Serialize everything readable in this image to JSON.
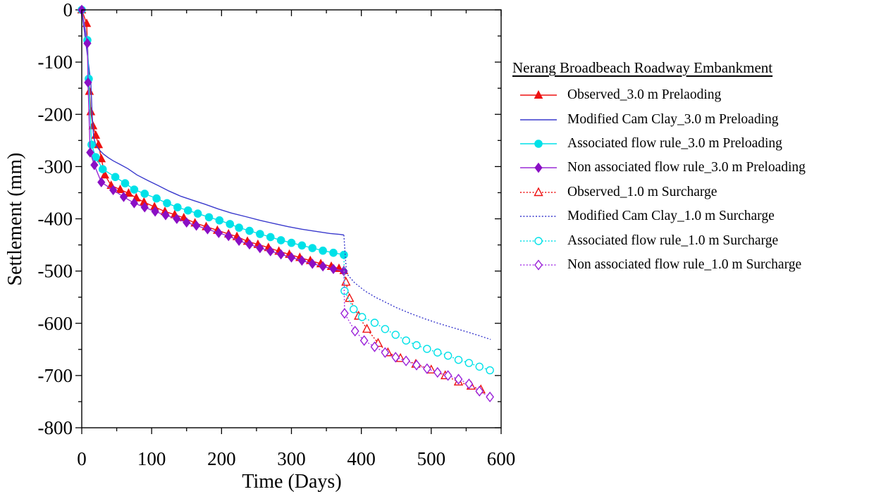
{
  "chart_data": {
    "type": "line",
    "legend_title": "Nerang Broadbeach Roadway Embankment",
    "xlabel": "Time (Days)",
    "ylabel": "Settlement (mm)",
    "xlim": [
      0,
      600
    ],
    "ylim": [
      -800,
      0
    ],
    "x_major_ticks": [
      0,
      100,
      200,
      300,
      400,
      500,
      600
    ],
    "x_minor_step": 50,
    "y_major_ticks": [
      0,
      -100,
      -200,
      -300,
      -400,
      -500,
      -600,
      -700,
      -800
    ],
    "y_minor_step": 50,
    "grid": false,
    "legend_position": "right-outside",
    "axis_color": "#000000",
    "series": [
      {
        "id": "observed-3m-preloading",
        "label": "Observed_3.0 m Prelaoding",
        "color": "#ee1111",
        "marker": "triangle",
        "marker_style": "filled",
        "line": "solid",
        "marker_from": 0,
        "points": [
          [
            0,
            0
          ],
          [
            7,
            -26
          ],
          [
            11,
            -156
          ],
          [
            13,
            -195
          ],
          [
            16,
            -222
          ],
          [
            20,
            -240
          ],
          [
            24,
            -258
          ],
          [
            28,
            -285
          ],
          [
            33,
            -316
          ],
          [
            42,
            -336
          ],
          [
            55,
            -344
          ],
          [
            67,
            -351
          ],
          [
            78,
            -360
          ],
          [
            89,
            -368
          ],
          [
            104,
            -377
          ],
          [
            119,
            -386
          ],
          [
            133,
            -392
          ],
          [
            146,
            -398
          ],
          [
            162,
            -408
          ],
          [
            178,
            -415
          ],
          [
            194,
            -422
          ],
          [
            210,
            -429
          ],
          [
            222,
            -434
          ],
          [
            237,
            -443
          ],
          [
            252,
            -449
          ],
          [
            267,
            -455
          ],
          [
            282,
            -462
          ],
          [
            297,
            -468
          ],
          [
            312,
            -474
          ],
          [
            327,
            -480
          ],
          [
            342,
            -486
          ],
          [
            357,
            -491
          ],
          [
            368,
            -495
          ],
          [
            375,
            -499
          ]
        ]
      },
      {
        "id": "mcc-3m-preloading",
        "label": "Modified Cam Clay_3.0 m Preloading",
        "color": "#3a3acd",
        "marker": "none",
        "marker_style": "none",
        "line": "solid",
        "marker_from": 0,
        "points": [
          [
            0,
            0
          ],
          [
            13,
            -140
          ],
          [
            15,
            -205
          ],
          [
            17,
            -244
          ],
          [
            20,
            -258
          ],
          [
            25,
            -268
          ],
          [
            31,
            -276
          ],
          [
            38,
            -283
          ],
          [
            45,
            -289
          ],
          [
            55,
            -296
          ],
          [
            66,
            -304
          ],
          [
            79,
            -316
          ],
          [
            95,
            -327
          ],
          [
            109,
            -336
          ],
          [
            125,
            -347
          ],
          [
            142,
            -357
          ],
          [
            160,
            -365
          ],
          [
            176,
            -372
          ],
          [
            195,
            -381
          ],
          [
            214,
            -389
          ],
          [
            235,
            -396
          ],
          [
            255,
            -403
          ],
          [
            275,
            -409
          ],
          [
            295,
            -415
          ],
          [
            315,
            -420
          ],
          [
            335,
            -424
          ],
          [
            355,
            -428
          ],
          [
            370,
            -430
          ],
          [
            375,
            -431
          ]
        ]
      },
      {
        "id": "associated-3m-preloading",
        "label": "Associated flow rule_3.0 m Preloading",
        "color": "#00e1e8",
        "marker": "circle",
        "marker_style": "filled",
        "line": "solid",
        "marker_from": 0,
        "points": [
          [
            0,
            0
          ],
          [
            8,
            -58
          ],
          [
            10,
            -132
          ],
          [
            14,
            -258
          ],
          [
            20,
            -282
          ],
          [
            30,
            -305
          ],
          [
            48,
            -320
          ],
          [
            62,
            -332
          ],
          [
            75,
            -344
          ],
          [
            90,
            -352
          ],
          [
            107,
            -361
          ],
          [
            122,
            -370
          ],
          [
            137,
            -378
          ],
          [
            152,
            -384
          ],
          [
            166,
            -390
          ],
          [
            182,
            -397
          ],
          [
            197,
            -403
          ],
          [
            212,
            -410
          ],
          [
            225,
            -417
          ],
          [
            240,
            -423
          ],
          [
            255,
            -429
          ],
          [
            270,
            -435
          ],
          [
            285,
            -441
          ],
          [
            300,
            -446
          ],
          [
            315,
            -451
          ],
          [
            330,
            -456
          ],
          [
            345,
            -461
          ],
          [
            360,
            -465
          ],
          [
            375,
            -469
          ]
        ]
      },
      {
        "id": "nonassociated-3m-preloading",
        "label": "Non associated flow rule_3.0 m Preloading",
        "color": "#9a2bd6",
        "marker_color": "#8a0fc4",
        "marker": "diamond",
        "marker_style": "filled",
        "line": "solid",
        "marker_from": 0,
        "points": [
          [
            0,
            0
          ],
          [
            8,
            -64
          ],
          [
            9,
            -139
          ],
          [
            12,
            -273
          ],
          [
            18,
            -297
          ],
          [
            28,
            -330
          ],
          [
            45,
            -345
          ],
          [
            60,
            -358
          ],
          [
            75,
            -370
          ],
          [
            90,
            -378
          ],
          [
            105,
            -386
          ],
          [
            120,
            -393
          ],
          [
            136,
            -400
          ],
          [
            150,
            -407
          ],
          [
            164,
            -413
          ],
          [
            180,
            -420
          ],
          [
            196,
            -427
          ],
          [
            210,
            -433
          ],
          [
            225,
            -442
          ],
          [
            240,
            -449
          ],
          [
            255,
            -456
          ],
          [
            270,
            -462
          ],
          [
            285,
            -468
          ],
          [
            300,
            -474
          ],
          [
            315,
            -480
          ],
          [
            330,
            -486
          ],
          [
            345,
            -491
          ],
          [
            360,
            -496
          ],
          [
            375,
            -500
          ]
        ]
      },
      {
        "id": "observed-1m-surcharge",
        "label": "Observed_1.0 m Surcharge",
        "color": "#ee1111",
        "marker": "triangle",
        "marker_style": "open",
        "line": "dotted",
        "marker_from": 1,
        "points": [
          [
            375,
            -499
          ],
          [
            378,
            -521
          ],
          [
            383,
            -552
          ],
          [
            396,
            -586
          ],
          [
            408,
            -611
          ],
          [
            424,
            -638
          ],
          [
            438,
            -656
          ],
          [
            456,
            -667
          ],
          [
            478,
            -678
          ],
          [
            500,
            -689
          ],
          [
            520,
            -700
          ],
          [
            539,
            -712
          ],
          [
            557,
            -720
          ],
          [
            571,
            -727
          ]
        ]
      },
      {
        "id": "mcc-1m-surcharge",
        "label": "Modified Cam Clay_1.0 m Surcharge",
        "color": "#3a3acd",
        "marker": "none",
        "marker_style": "none",
        "line": "dotted",
        "marker_from": 0,
        "points": [
          [
            375,
            -431
          ],
          [
            377,
            -472
          ],
          [
            379,
            -505
          ],
          [
            390,
            -522
          ],
          [
            405,
            -538
          ],
          [
            420,
            -550
          ],
          [
            435,
            -560
          ],
          [
            450,
            -570
          ],
          [
            470,
            -581
          ],
          [
            490,
            -591
          ],
          [
            510,
            -600
          ],
          [
            530,
            -608
          ],
          [
            550,
            -616
          ],
          [
            567,
            -623
          ],
          [
            585,
            -631
          ]
        ]
      },
      {
        "id": "associated-1m-surcharge",
        "label": "Associated flow rule_1.0 m Surcharge",
        "color": "#00e1e8",
        "marker": "circle",
        "marker_style": "open",
        "line": "dotted",
        "marker_from": 1,
        "points": [
          [
            375,
            -469
          ],
          [
            376,
            -538
          ],
          [
            389,
            -573
          ],
          [
            401,
            -588
          ],
          [
            419,
            -599
          ],
          [
            434,
            -611
          ],
          [
            449,
            -622
          ],
          [
            464,
            -633
          ],
          [
            479,
            -642
          ],
          [
            494,
            -649
          ],
          [
            509,
            -656
          ],
          [
            524,
            -662
          ],
          [
            539,
            -670
          ],
          [
            554,
            -676
          ],
          [
            569,
            -683
          ],
          [
            584,
            -690
          ]
        ]
      },
      {
        "id": "nonassociated-1m-surcharge",
        "label": "Non associated flow rule_1.0 m Surcharge",
        "color": "#a93be8",
        "marker_color": "#9a20d8",
        "marker": "diamond",
        "marker_style": "open",
        "line": "dotted",
        "marker_from": 1,
        "points": [
          [
            375,
            -500
          ],
          [
            376,
            -581
          ],
          [
            391,
            -615
          ],
          [
            404,
            -633
          ],
          [
            419,
            -645
          ],
          [
            434,
            -656
          ],
          [
            449,
            -665
          ],
          [
            464,
            -672
          ],
          [
            479,
            -680
          ],
          [
            494,
            -687
          ],
          [
            509,
            -694
          ],
          [
            524,
            -700
          ],
          [
            539,
            -707
          ],
          [
            554,
            -716
          ],
          [
            569,
            -730
          ],
          [
            584,
            -741
          ]
        ]
      }
    ]
  }
}
